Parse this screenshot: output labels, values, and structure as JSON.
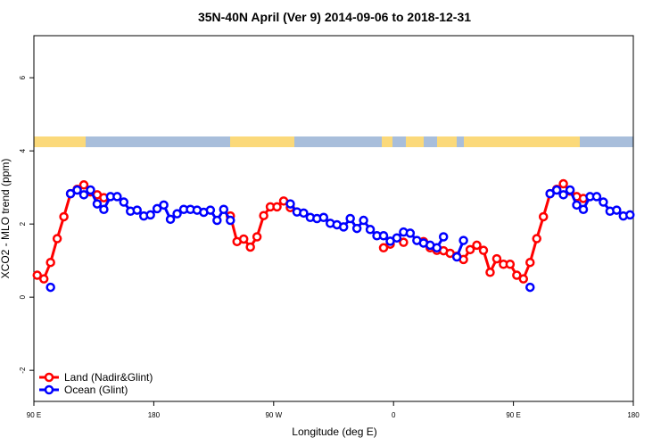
{
  "chart_data": {
    "type": "line",
    "title": "35N-40N April (Ver 9)   2014-09-06 to 2018-12-31",
    "x_label": "Longitude (deg E)",
    "y_label": "XCO2 - MLO trend (ppm)",
    "x": [
      92.5,
      97.5,
      102.5,
      107.5,
      112.5,
      117.5,
      122.5,
      127.5,
      132.5,
      137.5,
      142.5,
      147.5,
      152.5,
      157.5,
      162.5,
      167.5,
      172.5,
      177.5,
      182.5,
      187.5,
      192.5,
      197.5,
      202.5,
      207.5,
      212.5,
      217.5,
      222.5,
      227.5,
      232.5,
      237.5,
      242.5,
      247.5,
      252.5,
      257.5,
      262.5,
      267.5,
      272.5,
      277.5,
      282.5,
      287.5,
      292.5,
      297.5,
      302.5,
      307.5,
      312.5,
      317.5,
      322.5,
      327.5,
      332.5,
      337.5,
      342.5,
      347.5,
      352.5,
      357.5,
      362.5,
      367.5,
      372.5,
      377.5,
      382.5,
      387.5,
      392.5,
      397.5,
      402.5,
      407.5,
      412.5,
      417.5,
      422.5,
      427.5,
      432.5,
      437.5,
      442.5,
      447.5,
      452.5,
      457.5,
      462.5,
      467.5,
      472.5,
      477.5,
      482.5,
      487.5,
      492.5,
      497.5,
      502.5,
      507.5,
      512.5,
      517.5,
      522.5,
      527.5,
      532.5,
      537.5
    ],
    "series": [
      {
        "name": "Land (Nadir&Glint)",
        "color": "#ff0000",
        "values": [
          0.6,
          0.5,
          0.95,
          1.6,
          2.2,
          2.83,
          2.95,
          3.07,
          2.88,
          2.8,
          2.72,
          null,
          null,
          null,
          null,
          null,
          null,
          null,
          null,
          null,
          null,
          null,
          null,
          null,
          null,
          null,
          null,
          null,
          null,
          2.22,
          1.52,
          1.59,
          1.37,
          1.65,
          2.23,
          2.47,
          2.47,
          2.63,
          2.45,
          null,
          null,
          null,
          null,
          null,
          null,
          null,
          null,
          null,
          null,
          null,
          null,
          null,
          1.35,
          1.45,
          null,
          1.5,
          null,
          null,
          1.52,
          1.35,
          1.28,
          1.27,
          1.2,
          1.12,
          1.03,
          1.3,
          1.42,
          1.28,
          0.68,
          1.05,
          0.9,
          0.9,
          0.6,
          0.5,
          0.95,
          1.6,
          2.2,
          2.83,
          2.95,
          3.1,
          2.9,
          2.75,
          2.7,
          null,
          null,
          null,
          null,
          null,
          null,
          null
        ]
      },
      {
        "name": "Ocean (Glint)",
        "color": "#0000ff",
        "values": [
          null,
          null,
          0.27,
          null,
          null,
          2.83,
          2.93,
          2.8,
          2.93,
          2.55,
          2.4,
          2.75,
          2.75,
          2.6,
          2.35,
          2.38,
          2.22,
          2.25,
          2.42,
          2.52,
          2.13,
          2.28,
          2.4,
          2.4,
          2.38,
          2.32,
          2.38,
          2.1,
          2.4,
          2.1,
          null,
          null,
          null,
          null,
          null,
          null,
          null,
          null,
          2.55,
          2.33,
          2.3,
          2.18,
          2.15,
          2.18,
          2.02,
          1.98,
          1.92,
          2.15,
          1.88,
          2.1,
          1.85,
          1.68,
          1.68,
          1.53,
          1.62,
          1.78,
          1.75,
          1.55,
          1.48,
          1.42,
          1.35,
          1.65,
          null,
          1.1,
          1.55,
          null,
          null,
          null,
          null,
          null,
          null,
          null,
          null,
          null,
          0.27,
          null,
          null,
          2.83,
          2.93,
          2.8,
          2.93,
          2.52,
          2.4,
          2.75,
          2.75,
          2.6,
          2.35,
          2.38,
          2.22,
          2.25
        ]
      }
    ],
    "xlim": [
      90,
      540
    ],
    "xticks": [
      {
        "value": 90,
        "label": "90 E"
      },
      180,
      {
        "value": 270,
        "label": "90 W"
      },
      {
        "value": 360,
        "label": "0"
      },
      {
        "value": 450,
        "label": "90 E"
      },
      {
        "value": 540,
        "label": "180"
      }
    ],
    "ylim": [
      -2.85,
      7.15
    ],
    "yticks": [
      -2,
      0,
      2,
      4,
      6
    ],
    "legend": "bottom-left"
  }
}
